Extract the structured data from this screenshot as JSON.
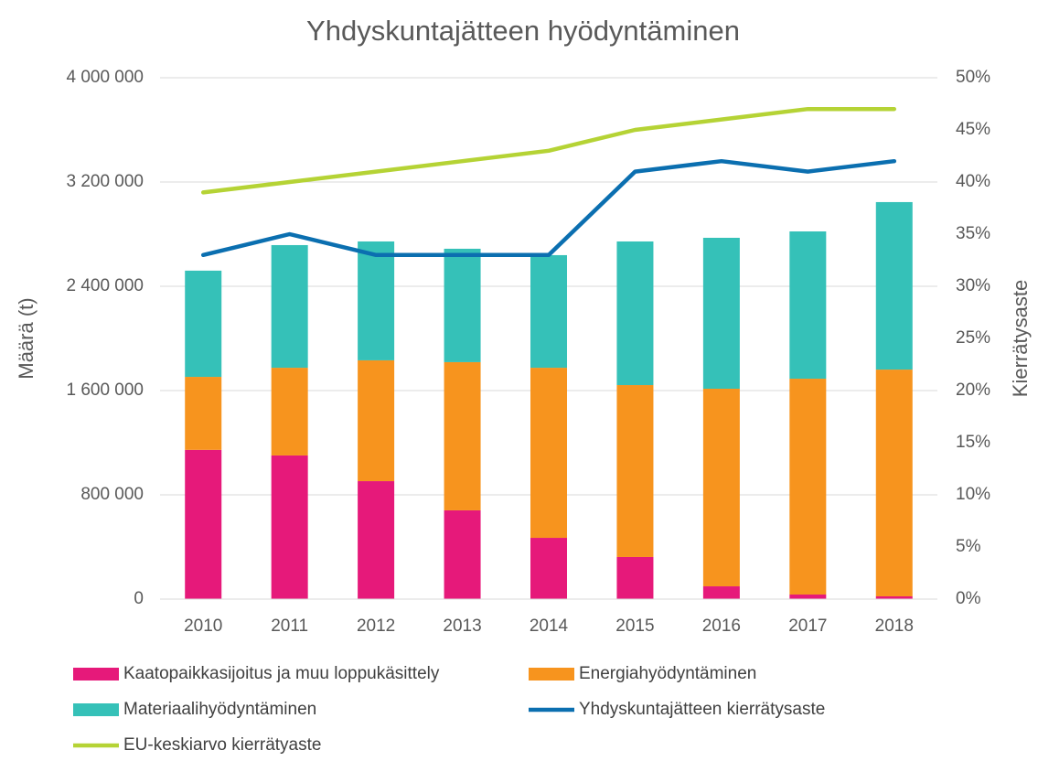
{
  "chart_data": {
    "type": "bar",
    "stacked": true,
    "title": "Yhdyskuntajätteen hyödyntäminen",
    "y_label": "Määrä (t)",
    "y2_label": "Kierrätysaste",
    "categories": [
      "2010",
      "2011",
      "2012",
      "2013",
      "2014",
      "2015",
      "2016",
      "2017",
      "2018"
    ],
    "series": [
      {
        "name": "Kaatopaikkasijoitus ja muu loppukäsittely",
        "color": "#e6197a",
        "type": "bar",
        "values": [
          1145000,
          1102000,
          905000,
          681000,
          470000,
          323000,
          98000,
          35000,
          21000
        ]
      },
      {
        "name": "Energiahyödyntäminen",
        "color": "#f7941e",
        "type": "bar",
        "values": [
          560000,
          673000,
          927000,
          1137000,
          1305000,
          1319000,
          1516000,
          1656000,
          1740000
        ]
      },
      {
        "name": "Materiaalihyödyntäminen",
        "color": "#35c1b8",
        "type": "bar",
        "values": [
          815000,
          941000,
          912000,
          870000,
          864000,
          1102000,
          1158000,
          1130000,
          1285000
        ]
      },
      {
        "name": "Yhdyskuntajätteen kierrätysaste",
        "color": "#0b6fb0",
        "type": "line",
        "axis": "y2",
        "values": [
          33,
          35,
          33,
          33,
          33,
          41,
          42,
          41,
          42
        ]
      },
      {
        "name": "EU-keskiarvo kierrätyaste",
        "color": "#b5d335",
        "type": "line",
        "axis": "y2",
        "values": [
          39,
          40,
          41,
          42,
          43,
          45,
          46,
          47,
          47
        ]
      }
    ],
    "ylim": [
      0,
      4000000
    ],
    "yticks": [
      0,
      {
        "value": 800000,
        "label": "800 000"
      },
      {
        "value": 1600000,
        "label": "1 600 000"
      },
      {
        "value": 2400000,
        "label": "2 400 000"
      },
      {
        "value": 3200000,
        "label": "3 200 000"
      },
      {
        "value": 4000000,
        "label": "4 000 000"
      }
    ],
    "y2lim": [
      0,
      50
    ],
    "y2ticks": [
      {
        "value": 0,
        "label": "0%"
      },
      {
        "value": 5,
        "label": "5%"
      },
      {
        "value": 10,
        "label": "10%"
      },
      {
        "value": 15,
        "label": "15%"
      },
      {
        "value": 20,
        "label": "20%"
      },
      {
        "value": 25,
        "label": "25%"
      },
      {
        "value": 30,
        "label": "30%"
      },
      {
        "value": 35,
        "label": "35%"
      },
      {
        "value": 40,
        "label": "40%"
      },
      {
        "value": 45,
        "label": "45%"
      },
      {
        "value": 50,
        "label": "50%"
      }
    ],
    "grid": true,
    "legend": "bottom"
  }
}
